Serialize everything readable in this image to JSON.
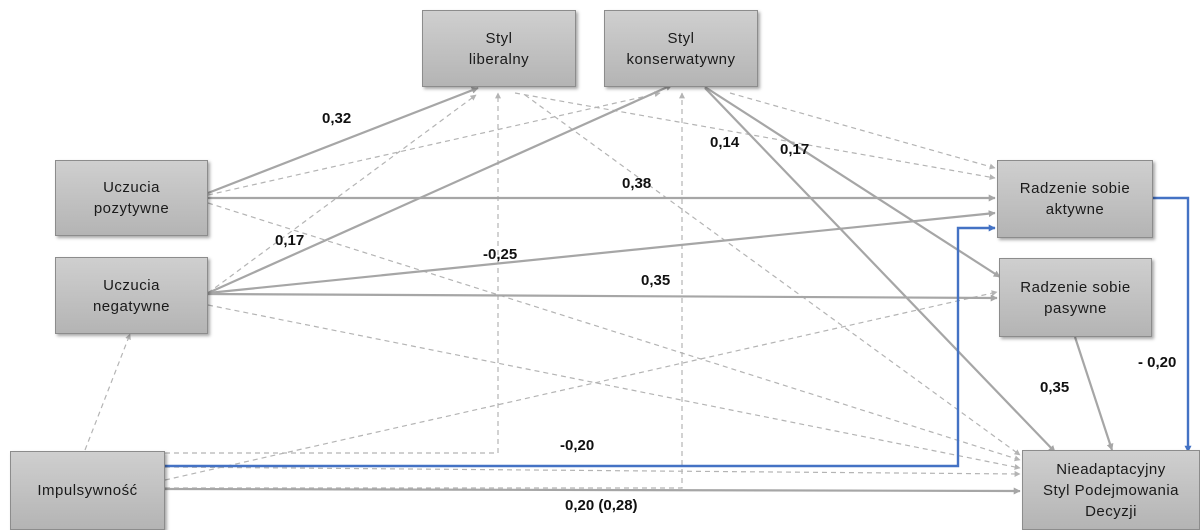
{
  "nodes": {
    "styl_liberalny": "Styl\nliberalny",
    "styl_konserwatywny": "Styl\nkonserwatywny",
    "uczucia_pozytywne": "Uczucia\npozytywne",
    "uczucia_negatywne": "Uczucia\nnegatywne",
    "impulsywnosc": "Impulsywność",
    "radzenie_aktywne": "Radzenie sobie\naktywne",
    "radzenie_pasywne": "Radzenie sobie\npasywne",
    "nieadaptacyjny": "Nieadaptacyjny\nStyl Podejmowania\nDecyzji"
  },
  "coefficients": {
    "poz_to_liberalny": "0,32",
    "poz_to_aktywne": "0,38",
    "neg_to_konserw": "0,17",
    "neg_to_aktywne": "-0,25",
    "neg_to_pasywne": "0,35",
    "konserw_to_aktywne": "0,17",
    "konserw_to_pasywne": "0,14",
    "pasywne_to_nieadapt": "0,35",
    "aktywne_to_nieadapt": "- 0,20",
    "impuls_to_aktywne": "-0,20",
    "impuls_to_nieadapt": "0,20 (0,28)"
  },
  "colors": {
    "solid_path": "#a6a6a6",
    "dashed_path": "#b4b4b4",
    "highlight_path": "#4472c4"
  }
}
